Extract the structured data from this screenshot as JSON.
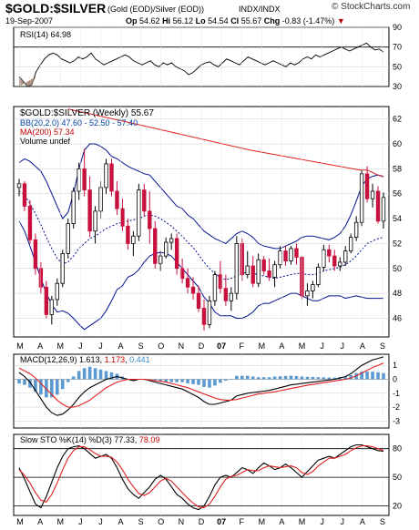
{
  "header": {
    "symbol": "$GOLD:$SILVER",
    "subtitle": "(Gold (EOD)/Silver (EOD))",
    "exchange": "INDX/INDX",
    "brand": "© StockCharts.com",
    "date": "19-Sep-2007",
    "op_label": "Op",
    "op": "54.62",
    "hi_label": "Hi",
    "hi": "56.12",
    "lo_label": "Lo",
    "lo": "54.54",
    "cl_label": "Cl",
    "cl": "55.67",
    "chg_label": "Chg",
    "chg": "-0.83 (-1.47%)",
    "chg_arrow": "▼"
  },
  "colors": {
    "up_candle": "#000000",
    "down_candle": "#c8103e",
    "bollinger": "#00108f",
    "ma200": "#e02020",
    "macd_line": "#000000",
    "macd_signal": "#e02020",
    "histogram": "#5a9ad0",
    "rsi_fill_low": "#9e7a6a"
  },
  "chart_data": [
    {
      "type": "line",
      "panel": "rsi",
      "legend": "RSI(14) 64.98",
      "ylim": [
        30,
        90
      ],
      "yticks": [
        90,
        70,
        50,
        30
      ],
      "reference_lines": [
        70,
        30
      ],
      "values": [
        40,
        35,
        30,
        32,
        45,
        52,
        58,
        62,
        64,
        62,
        58,
        56,
        54,
        56,
        60,
        58,
        60,
        64,
        58,
        55,
        52,
        54,
        56,
        58,
        60,
        62,
        60,
        56,
        54,
        52,
        54,
        56,
        52,
        50,
        54,
        52,
        54,
        50,
        48,
        46,
        42,
        44,
        48,
        52,
        54,
        55,
        52,
        50,
        54,
        58,
        56,
        54,
        52,
        56,
        60,
        58,
        56,
        54,
        52,
        54,
        56,
        54,
        52,
        50,
        54,
        52,
        54,
        58,
        60,
        58,
        62,
        60,
        62,
        64,
        66,
        68,
        70,
        68,
        66,
        68,
        70,
        72,
        74,
        70,
        67,
        68,
        65
      ]
    },
    {
      "type": "candlestick",
      "panel": "price",
      "legend": "$GOLD:$SILVER (Weekly) 55.67",
      "series_labels": {
        "bb": "BB(20,2.0) 47.60 - 52.50 - 57.40",
        "ma": "MA(200) 57.34",
        "volume": "Volume undef"
      },
      "ylim": [
        44.5,
        63
      ],
      "yticks": [
        62,
        60,
        58,
        56,
        54,
        52,
        50,
        48,
        46
      ],
      "x_labels": [
        "M",
        "A",
        "M",
        "J",
        "J",
        "A",
        "S",
        "O",
        "N",
        "D",
        "07",
        "F",
        "M",
        "A",
        "M",
        "J",
        "J",
        "A",
        "S"
      ],
      "ohlc": [
        [
          56.5,
          57.2,
          55.8,
          56.8
        ],
        [
          56.8,
          57.0,
          54.6,
          55.0
        ],
        [
          55.0,
          55.5,
          52.0,
          52.3
        ],
        [
          52.3,
          52.8,
          49.5,
          50.0
        ],
        [
          50.0,
          50.5,
          48.0,
          48.5
        ],
        [
          48.5,
          49.0,
          46.0,
          46.3
        ],
        [
          46.3,
          47.8,
          45.5,
          47.5
        ],
        [
          47.5,
          49.2,
          47.0,
          48.8
        ],
        [
          48.8,
          51.5,
          48.5,
          51.2
        ],
        [
          51.2,
          54.0,
          50.8,
          53.6
        ],
        [
          53.6,
          56.5,
          53.2,
          56.2
        ],
        [
          56.2,
          58.5,
          55.5,
          58.0
        ],
        [
          58.0,
          59.6,
          55.8,
          56.3
        ],
        [
          56.3,
          57.4,
          52.5,
          53.0
        ],
        [
          53.0,
          55.0,
          52.0,
          54.6
        ],
        [
          54.6,
          57.0,
          54.0,
          56.5
        ],
        [
          56.5,
          58.8,
          56.0,
          58.4
        ],
        [
          58.4,
          58.8,
          55.8,
          56.2
        ],
        [
          56.2,
          57.0,
          54.3,
          54.8
        ],
        [
          54.8,
          55.6,
          53.0,
          53.4
        ],
        [
          53.4,
          54.0,
          51.5,
          52.0
        ],
        [
          52.0,
          53.0,
          51.0,
          52.6
        ],
        [
          52.6,
          56.8,
          52.2,
          56.3
        ],
        [
          56.3,
          56.8,
          54.2,
          54.6
        ],
        [
          54.6,
          56.2,
          52.0,
          53.2
        ],
        [
          53.2,
          53.8,
          50.0,
          50.4
        ],
        [
          50.4,
          51.4,
          49.8,
          51.0
        ],
        [
          51.0,
          52.5,
          50.8,
          52.1
        ],
        [
          52.1,
          52.8,
          51.5,
          52.4
        ],
        [
          52.4,
          52.8,
          49.5,
          50.0
        ],
        [
          50.0,
          50.8,
          48.8,
          49.2
        ],
        [
          49.2,
          50.0,
          48.0,
          48.5
        ],
        [
          48.5,
          49.3,
          47.5,
          48.0
        ],
        [
          48.0,
          48.6,
          46.5,
          46.8
        ],
        [
          46.8,
          47.5,
          45.0,
          45.5
        ],
        [
          45.5,
          47.8,
          45.2,
          47.4
        ],
        [
          47.4,
          49.8,
          47.0,
          49.5
        ],
        [
          49.5,
          50.6,
          48.0,
          48.4
        ],
        [
          48.4,
          49.5,
          47.0,
          47.4
        ],
        [
          47.4,
          48.5,
          46.6,
          48.0
        ],
        [
          48.0,
          52.6,
          47.5,
          52.0
        ],
        [
          52.0,
          52.4,
          49.0,
          49.5
        ],
        [
          49.5,
          51.4,
          49.2,
          50.2
        ],
        [
          50.2,
          51.0,
          48.5,
          48.8
        ],
        [
          48.8,
          51.2,
          48.5,
          50.7
        ],
        [
          50.7,
          51.0,
          49.5,
          49.8
        ],
        [
          49.8,
          50.8,
          49.0,
          49.3
        ],
        [
          49.3,
          50.6,
          48.5,
          50.3
        ],
        [
          50.3,
          51.8,
          50.0,
          51.4
        ],
        [
          51.4,
          51.8,
          50.2,
          50.6
        ],
        [
          50.6,
          51.8,
          50.3,
          51.6
        ],
        [
          51.6,
          52.0,
          50.3,
          50.9
        ],
        [
          50.9,
          51.0,
          47.5,
          47.8
        ],
        [
          47.8,
          48.8,
          47.0,
          48.2
        ],
        [
          48.2,
          49.0,
          47.6,
          48.7
        ],
        [
          48.7,
          50.4,
          48.5,
          50.1
        ],
        [
          50.1,
          51.9,
          49.8,
          51.5
        ],
        [
          51.5,
          51.9,
          50.5,
          51.0
        ],
        [
          51.0,
          51.5,
          49.8,
          50.2
        ],
        [
          50.2,
          50.9,
          49.8,
          50.5
        ],
        [
          50.5,
          51.8,
          50.2,
          51.4
        ],
        [
          51.4,
          52.8,
          51.2,
          52.5
        ],
        [
          52.5,
          54.2,
          52.2,
          53.7
        ],
        [
          53.7,
          57.9,
          53.4,
          57.6
        ],
        [
          57.6,
          58.2,
          55.3,
          55.6
        ],
        [
          55.6,
          56.8,
          54.9,
          56.2
        ],
        [
          56.2,
          56.6,
          53.6,
          53.8
        ],
        [
          53.8,
          56.1,
          53.2,
          55.7
        ]
      ],
      "bb_upper": [
        58.5,
        58.8,
        58.6,
        58.2,
        57.8,
        57.0,
        56.0,
        55.0,
        54.0,
        54.5,
        56.0,
        58.0,
        59.5,
        60.0,
        60.0,
        59.8,
        59.5,
        59.0,
        58.8,
        58.5,
        58.2,
        58.0,
        57.8,
        57.6,
        57.5,
        57.0,
        56.5,
        56.0,
        55.5,
        55.0,
        54.8,
        54.3,
        54.0,
        53.5,
        53.0,
        52.7,
        52.4,
        52.2,
        52.0,
        52.4,
        52.8,
        53.0,
        52.8,
        52.5,
        52.0,
        51.8,
        51.7,
        51.6,
        51.6,
        51.8,
        52.0,
        52.2,
        52.5,
        52.6,
        52.6,
        52.5,
        52.4,
        52.3,
        52.5,
        52.8,
        53.4,
        54.3,
        55.4,
        56.6,
        57.2,
        57.4,
        57.5,
        57.4
      ],
      "bb_middle": [
        56.2,
        55.9,
        55.2,
        54.4,
        53.5,
        52.5,
        51.6,
        50.8,
        50.4,
        50.5,
        51.0,
        51.6,
        52.0,
        52.4,
        52.6,
        52.9,
        53.2,
        53.4,
        53.6,
        53.7,
        53.8,
        53.9,
        54.0,
        54.2,
        54.3,
        54.2,
        54.0,
        53.7,
        53.4,
        53.0,
        52.6,
        52.1,
        51.7,
        51.1,
        50.5,
        50.0,
        49.6,
        49.3,
        49.1,
        49.2,
        49.4,
        49.6,
        49.7,
        49.6,
        49.5,
        49.4,
        49.3,
        49.2,
        49.3,
        49.4,
        49.5,
        49.6,
        49.6,
        49.5,
        49.5,
        49.6,
        49.8,
        49.9,
        50.0,
        50.1,
        50.3,
        50.6,
        51.0,
        51.5,
        52.0,
        52.2,
        52.4,
        52.5
      ],
      "bb_lower": [
        53.8,
        53.0,
        51.8,
        50.5,
        49.2,
        48.0,
        47.1,
        46.5,
        46.6,
        46.4,
        46.0,
        45.5,
        45.1,
        45.4,
        45.7,
        46.0,
        46.6,
        47.4,
        48.3,
        48.6,
        49.3,
        49.5,
        49.9,
        50.5,
        51.0,
        51.2,
        51.3,
        51.2,
        51.0,
        50.5,
        50.0,
        49.5,
        49.0,
        48.5,
        47.7,
        47.2,
        46.5,
        46.2,
        46.2,
        46.2,
        46.0,
        46.0,
        46.2,
        46.5,
        47.0,
        47.2,
        47.2,
        47.4,
        47.6,
        47.8,
        48.0,
        48.0,
        47.8,
        47.6,
        47.4,
        47.4,
        47.6,
        47.8,
        47.8,
        47.8,
        47.6,
        47.7,
        47.8,
        47.7,
        47.6,
        47.6,
        47.6,
        47.6
      ],
      "ma200": [
        null,
        null,
        null,
        null,
        null,
        null,
        null,
        null,
        null,
        null,
        null,
        null,
        null,
        null,
        null,
        null,
        null,
        null,
        null,
        null,
        null,
        null,
        null,
        null,
        null,
        null,
        null,
        null,
        null,
        null,
        null,
        null,
        null,
        null,
        null,
        null,
        null,
        null,
        null,
        null,
        null,
        null,
        null,
        null,
        null,
        null,
        null,
        null,
        null,
        null,
        null,
        null,
        null,
        null,
        null,
        null,
        null,
        null,
        null,
        null,
        null,
        null,
        null,
        null,
        57.9,
        57.7,
        57.5,
        57.34
      ]
    },
    {
      "type": "line",
      "panel": "macd",
      "legend_name": "MACD(12,26,9)",
      "legend_macd": "1.613",
      "legend_signal": "1.173",
      "legend_hist": "0.441",
      "ylim": [
        -3.5,
        1.8
      ],
      "yticks": [
        1,
        0,
        -1,
        -2,
        -3
      ],
      "macd": [
        0.5,
        0.2,
        -0.2,
        -0.8,
        -1.4,
        -2.0,
        -2.4,
        -2.6,
        -2.5,
        -2.2,
        -1.8,
        -1.3,
        -0.9,
        -0.6,
        -0.4,
        -0.2,
        0.0,
        0.1,
        0.2,
        0.1,
        0.0,
        -0.1,
        0.0,
        0.0,
        -0.1,
        -0.2,
        -0.3,
        -0.4,
        -0.5,
        -0.6,
        -0.7,
        -0.9,
        -1.1,
        -1.3,
        -1.6,
        -1.8,
        -1.8,
        -1.7,
        -1.6,
        -1.5,
        -1.2,
        -1.1,
        -1.0,
        -0.95,
        -0.9,
        -0.85,
        -0.8,
        -0.7,
        -0.6,
        -0.5,
        -0.4,
        -0.35,
        -0.3,
        -0.25,
        -0.2,
        -0.15,
        -0.1,
        -0.05,
        0.0,
        0.1,
        0.2,
        0.4,
        0.7,
        1.0,
        1.2,
        1.4,
        1.5,
        1.613
      ],
      "signal": [
        0.8,
        0.6,
        0.4,
        0.1,
        -0.3,
        -0.7,
        -1.1,
        -1.5,
        -1.8,
        -2.0,
        -2.0,
        -1.9,
        -1.7,
        -1.5,
        -1.2,
        -0.9,
        -0.6,
        -0.4,
        -0.2,
        -0.1,
        0.0,
        0.0,
        0.0,
        0.0,
        -0.05,
        -0.1,
        -0.15,
        -0.2,
        -0.3,
        -0.4,
        -0.5,
        -0.6,
        -0.75,
        -0.9,
        -1.05,
        -1.2,
        -1.35,
        -1.45,
        -1.5,
        -1.5,
        -1.45,
        -1.35,
        -1.25,
        -1.15,
        -1.05,
        -1.0,
        -0.95,
        -0.9,
        -0.82,
        -0.74,
        -0.66,
        -0.58,
        -0.5,
        -0.43,
        -0.37,
        -0.3,
        -0.24,
        -0.18,
        -0.12,
        -0.06,
        0.0,
        0.1,
        0.25,
        0.45,
        0.65,
        0.85,
        1.0,
        1.173
      ]
    },
    {
      "type": "line",
      "panel": "stochastic",
      "legend_name": "Slow STO %K(14) %D(3)",
      "legend_k": "77.33",
      "legend_d": "78.09",
      "ylim": [
        10,
        95
      ],
      "yticks": [
        80,
        50,
        20
      ],
      "reference_lines": [
        80,
        50,
        20
      ],
      "k": [
        60,
        48,
        35,
        22,
        18,
        30,
        45,
        60,
        72,
        80,
        82,
        83,
        80,
        75,
        70,
        72,
        74,
        70,
        60,
        48,
        38,
        32,
        28,
        34,
        40,
        48,
        52,
        48,
        40,
        32,
        28,
        22,
        18,
        16,
        20,
        30,
        42,
        50,
        52,
        50,
        55,
        60,
        58,
        54,
        60,
        65,
        62,
        58,
        60,
        64,
        60,
        55,
        50,
        56,
        62,
        68,
        70,
        72,
        70,
        74,
        78,
        82,
        84,
        84,
        82,
        80,
        78,
        77.33
      ],
      "d": [
        58,
        52,
        44,
        34,
        26,
        24,
        32,
        44,
        58,
        70,
        78,
        82,
        82,
        79,
        75,
        72,
        72,
        71,
        66,
        58,
        48,
        40,
        33,
        31,
        34,
        40,
        46,
        49,
        46,
        40,
        34,
        28,
        23,
        19,
        18,
        22,
        30,
        40,
        48,
        51,
        52,
        55,
        58,
        57,
        57,
        60,
        62,
        61,
        60,
        61,
        62,
        60,
        55,
        53,
        56,
        62,
        66,
        70,
        70,
        72,
        74,
        78,
        81,
        83,
        83,
        82,
        80,
        78.09
      ]
    }
  ]
}
